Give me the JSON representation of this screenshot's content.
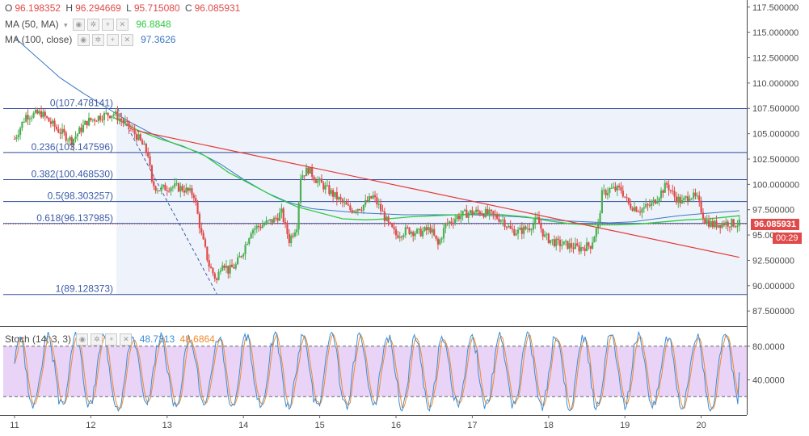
{
  "ohlc": {
    "o_label": "O",
    "o": "96.198352",
    "h_label": "H",
    "h": "96.294669",
    "l_label": "L",
    "l": "95.715080",
    "c_label": "C",
    "c": "96.085931"
  },
  "legend": {
    "ma50_label": "MA (50, MA)",
    "ma50_value": "96.8848",
    "ma100_label": "MA (100, close)",
    "ma100_value": "97.3626",
    "stoch_label": "Stoch (14, 3, 3)",
    "stoch_k": "48.7313",
    "stoch_d": "48.6864"
  },
  "colors": {
    "candle_up": "#4caf50",
    "candle_down": "#e04a4a",
    "ma50": "#2ecc40",
    "ma100": "#3b78c2",
    "fib": "#2b4a9a",
    "trend": "#e53935",
    "stoch_k": "#3b8ed8",
    "stoch_d": "#f08a2e",
    "stoch_band": "#e9d3f7"
  },
  "price_badge": "96.085931",
  "timer_badge": "00:29",
  "chart_data": {
    "type": "candlestick",
    "price_axis": {
      "ylim": [
        86.0,
        118.2
      ],
      "ticks": [
        "117.500000",
        "115.000000",
        "112.500000",
        "110.000000",
        "107.500000",
        "105.000000",
        "102.500000",
        "100.000000",
        "97.500000",
        "95.000",
        "92.500000",
        "90.000000",
        "87.500000"
      ],
      "tick_values": [
        117.5,
        115,
        112.5,
        110,
        107.5,
        105,
        102.5,
        100,
        97.5,
        95,
        92.5,
        90,
        87.5
      ]
    },
    "x_axis": {
      "labels": [
        "11",
        "12",
        "13",
        "14",
        "15",
        "16",
        "17",
        "18",
        "19",
        "20"
      ]
    },
    "fibonacci": [
      {
        "label": "0(107.478141)",
        "value": 107.478141
      },
      {
        "label": "0.236(103.147596)",
        "value": 103.147596
      },
      {
        "label": "0.382(100.468530)",
        "value": 100.46853
      },
      {
        "label": "0.5(98.303257)",
        "value": 98.303257
      },
      {
        "label": "0.618(96.137985)",
        "value": 96.137985
      },
      {
        "label": "1(89.128373)",
        "value": 89.128373
      }
    ],
    "close_path": [
      [
        11.0,
        104.5
      ],
      [
        11.15,
        106.8
      ],
      [
        11.35,
        107.0
      ],
      [
        11.55,
        105.5
      ],
      [
        11.75,
        104.3
      ],
      [
        11.95,
        106.2
      ],
      [
        12.15,
        106.8
      ],
      [
        12.3,
        107.0
      ],
      [
        12.45,
        106.0
      ],
      [
        12.6,
        104.8
      ],
      [
        12.75,
        103.0
      ],
      [
        12.8,
        100.0
      ],
      [
        12.9,
        99.5
      ],
      [
        13.05,
        99.8
      ],
      [
        13.2,
        99.6
      ],
      [
        13.35,
        99.0
      ],
      [
        13.45,
        95.0
      ],
      [
        13.55,
        92.0
      ],
      [
        13.65,
        90.5
      ],
      [
        13.72,
        92.5
      ],
      [
        13.8,
        91.5
      ],
      [
        13.9,
        92.0
      ],
      [
        14.0,
        93.5
      ],
      [
        14.1,
        95.5
      ],
      [
        14.25,
        96.0
      ],
      [
        14.4,
        96.5
      ],
      [
        14.5,
        97.2
      ],
      [
        14.6,
        94.5
      ],
      [
        14.7,
        96.0
      ],
      [
        14.75,
        100.8
      ],
      [
        14.85,
        101.5
      ],
      [
        14.95,
        100.5
      ],
      [
        15.1,
        99.5
      ],
      [
        15.25,
        98.5
      ],
      [
        15.4,
        97.5
      ],
      [
        15.55,
        97.8
      ],
      [
        15.7,
        98.8
      ],
      [
        15.8,
        97.5
      ],
      [
        15.9,
        96.0
      ],
      [
        16.0,
        95.0
      ],
      [
        16.15,
        95.5
      ],
      [
        16.3,
        95.2
      ],
      [
        16.45,
        95.6
      ],
      [
        16.55,
        94.0
      ],
      [
        16.65,
        96.0
      ],
      [
        16.8,
        96.8
      ],
      [
        16.95,
        97.2
      ],
      [
        17.1,
        97.3
      ],
      [
        17.25,
        97.0
      ],
      [
        17.4,
        96.5
      ],
      [
        17.5,
        95.5
      ],
      [
        17.6,
        95.3
      ],
      [
        17.75,
        95.8
      ],
      [
        17.85,
        96.5
      ],
      [
        17.95,
        94.8
      ],
      [
        18.1,
        94.2
      ],
      [
        18.25,
        94.0
      ],
      [
        18.4,
        93.7
      ],
      [
        18.55,
        94.0
      ],
      [
        18.65,
        96.0
      ],
      [
        18.7,
        99.0
      ],
      [
        18.8,
        99.5
      ],
      [
        18.95,
        99.5
      ],
      [
        19.05,
        98.0
      ],
      [
        19.2,
        97.5
      ],
      [
        19.35,
        98.0
      ],
      [
        19.45,
        99.0
      ],
      [
        19.55,
        100.0
      ],
      [
        19.65,
        98.8
      ],
      [
        19.75,
        98.2
      ],
      [
        19.85,
        99.0
      ],
      [
        19.95,
        98.5
      ],
      [
        20.05,
        96.5
      ],
      [
        20.15,
        96.0
      ],
      [
        20.3,
        96.2
      ],
      [
        20.5,
        96.1
      ]
    ],
    "ma50": [
      [
        12.3,
        106.6
      ],
      [
        12.6,
        105.4
      ],
      [
        12.9,
        104.5
      ],
      [
        13.2,
        103.8
      ],
      [
        13.5,
        102.8
      ],
      [
        13.8,
        101.2
      ],
      [
        14.1,
        100.0
      ],
      [
        14.4,
        98.8
      ],
      [
        14.7,
        97.8
      ],
      [
        15.0,
        97.2
      ],
      [
        15.3,
        96.6
      ],
      [
        15.6,
        96.5
      ],
      [
        15.9,
        96.6
      ],
      [
        16.2,
        96.8
      ],
      [
        16.5,
        96.9
      ],
      [
        16.8,
        97.0
      ],
      [
        17.1,
        97.1
      ],
      [
        17.4,
        97.0
      ],
      [
        17.7,
        96.8
      ],
      [
        18.0,
        96.4
      ],
      [
        18.3,
        96.1
      ],
      [
        18.6,
        96.0
      ],
      [
        18.9,
        96.0
      ],
      [
        19.2,
        96.1
      ],
      [
        19.5,
        96.3
      ],
      [
        19.8,
        96.5
      ],
      [
        20.1,
        96.6
      ],
      [
        20.5,
        96.9
      ]
    ],
    "ma100": [
      [
        11.0,
        114.5
      ],
      [
        11.3,
        112.5
      ],
      [
        11.6,
        110.5
      ],
      [
        11.9,
        109.0
      ],
      [
        12.2,
        107.6
      ],
      [
        12.5,
        106.2
      ],
      [
        12.8,
        105.0
      ],
      [
        13.1,
        104.0
      ],
      [
        13.4,
        103.2
      ],
      [
        13.7,
        102.0
      ],
      [
        14.0,
        100.5
      ],
      [
        14.3,
        99.2
      ],
      [
        14.6,
        98.2
      ],
      [
        14.9,
        97.6
      ],
      [
        15.2,
        97.4
      ],
      [
        15.5,
        97.2
      ],
      [
        15.8,
        97.1
      ],
      [
        16.1,
        97.0
      ],
      [
        16.4,
        97.0
      ],
      [
        16.7,
        97.0
      ],
      [
        17.0,
        97.0
      ],
      [
        17.3,
        96.9
      ],
      [
        17.6,
        96.8
      ],
      [
        17.9,
        96.6
      ],
      [
        18.2,
        96.4
      ],
      [
        18.5,
        96.3
      ],
      [
        18.8,
        96.2
      ],
      [
        19.1,
        96.3
      ],
      [
        19.4,
        96.6
      ],
      [
        19.7,
        96.9
      ],
      [
        20.0,
        97.1
      ],
      [
        20.5,
        97.4
      ]
    ],
    "trendline": [
      [
        12.6,
        105.3
      ],
      [
        20.5,
        92.8
      ]
    ],
    "dashed_line": [
      [
        12.35,
        107.5
      ],
      [
        13.65,
        89.2
      ]
    ],
    "stochastic": {
      "ylim": [
        0,
        100
      ],
      "upper_band": 80,
      "lower_band": 20,
      "ticks": [
        "80.0000",
        "40.0000"
      ],
      "tick_values": [
        80,
        40
      ],
      "k_last": 48.7313,
      "d_last": 48.6864
    }
  }
}
